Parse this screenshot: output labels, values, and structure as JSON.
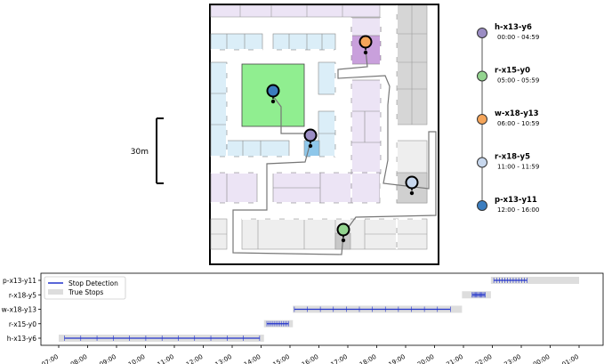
{
  "scale_bar": {
    "label": "30m"
  },
  "stops": [
    {
      "id": "h-x13-y6",
      "time": "00:00 - 04:59",
      "color": "#9b8dc4"
    },
    {
      "id": "r-x15-y0",
      "time": "05:00 - 05:59",
      "color": "#93d48f"
    },
    {
      "id": "w-x18-y13",
      "time": "06:00 - 10:59",
      "color": "#f5a55a"
    },
    {
      "id": "r-x18-y5",
      "time": "11:00 - 11:59",
      "color": "#c8d8ee"
    },
    {
      "id": "p-x13-y11",
      "time": "12:00 - 16:00",
      "color": "#3b7dbf"
    }
  ],
  "timeline": {
    "legend": {
      "stop_detection": "Stop Detection",
      "true_stops": "True Stops"
    },
    "rows": [
      "p-x13-y11",
      "r-x18-y5",
      "w-x18-y13",
      "r-x15-y0",
      "h-x13-y6"
    ],
    "x_ticks": [
      "07:00",
      "08:00",
      "09:00",
      "10:00",
      "11:00",
      "12:00",
      "13:00",
      "14:00",
      "15:00",
      "16:00",
      "17:00",
      "18:00",
      "19:00",
      "20:00",
      "21:00",
      "22:00",
      "23:00",
      "00:00",
      "01:00"
    ],
    "true_stops": [
      {
        "row": "h-x13-y6",
        "start": 7.0,
        "end": 14.1
      },
      {
        "row": "r-x15-y0",
        "start": 14.1,
        "end": 15.1
      },
      {
        "row": "w-x18-y13",
        "start": 15.1,
        "end": 20.95
      },
      {
        "row": "r-x18-y5",
        "start": 20.95,
        "end": 21.95
      },
      {
        "row": "p-x13-y11",
        "start": 21.95,
        "end": 25.0
      }
    ],
    "detected_stops": [
      {
        "row": "h-x13-y6",
        "start": 7.2,
        "end": 13.95
      },
      {
        "row": "r-x15-y0",
        "start": 14.2,
        "end": 14.95
      },
      {
        "row": "w-x18-y13",
        "start": 15.15,
        "end": 20.55
      },
      {
        "row": "r-x18-y5",
        "start": 21.3,
        "end": 21.75
      },
      {
        "row": "p-x13-y11",
        "start": 22.05,
        "end": 23.2
      }
    ]
  }
}
